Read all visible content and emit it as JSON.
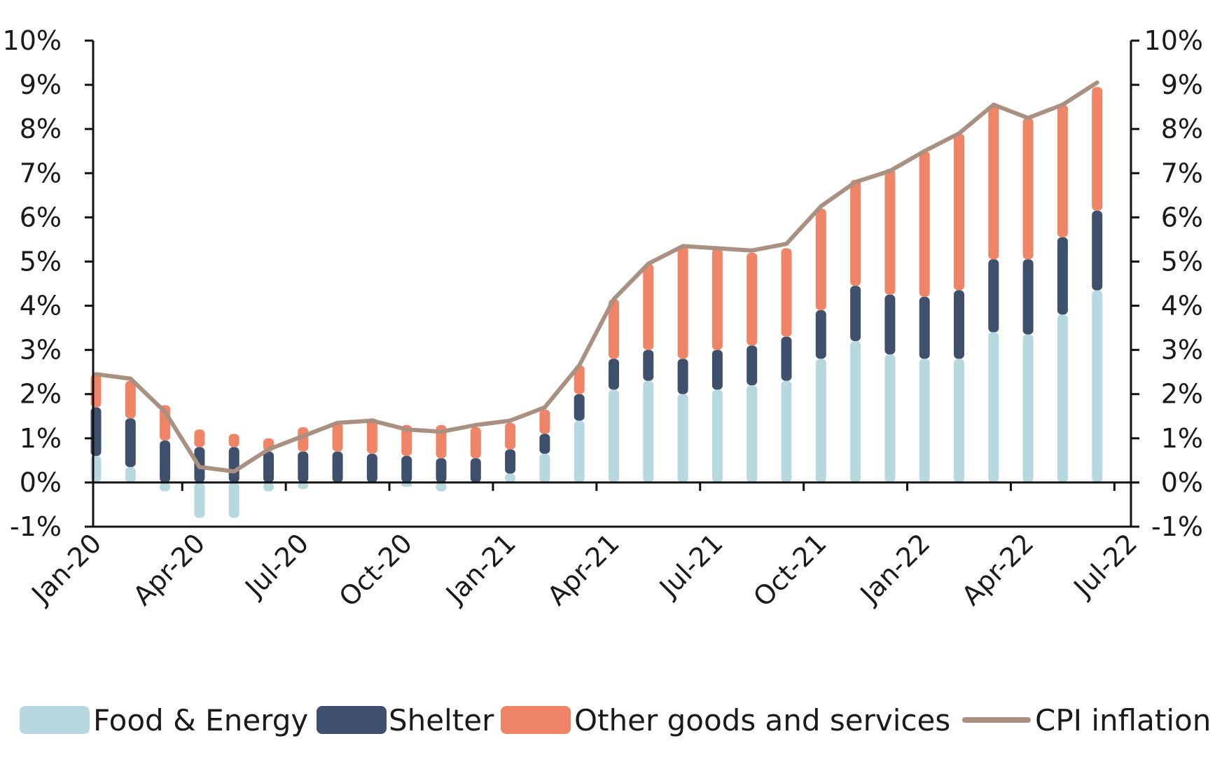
{
  "chart_data": {
    "type": "bar",
    "stacked": true,
    "categories": [
      "Jan-20",
      "Feb-20",
      "Mar-20",
      "Apr-20",
      "May-20",
      "Jun-20",
      "Jul-20",
      "Aug-20",
      "Sep-20",
      "Oct-20",
      "Nov-20",
      "Dec-20",
      "Jan-21",
      "Feb-21",
      "Mar-21",
      "Apr-21",
      "May-21",
      "Jun-21",
      "Jul-21",
      "Aug-21",
      "Sep-21",
      "Oct-21",
      "Nov-21",
      "Dec-21",
      "Jan-22",
      "Feb-22",
      "Mar-22",
      "Apr-22",
      "May-22",
      "Jun-22"
    ],
    "x_tick_labels": [
      "Jan-20",
      "Apr-20",
      "Jul-20",
      "Oct-20",
      "Jan-21",
      "Apr-21",
      "Jul-21",
      "Oct-21",
      "Jan-22",
      "Apr-22",
      "Jul-22"
    ],
    "y_tick_labels": [
      "-1%",
      "0%",
      "1%",
      "2%",
      "3%",
      "4%",
      "5%",
      "6%",
      "7%",
      "8%",
      "9%",
      "10%"
    ],
    "ylim": [
      -1,
      10
    ],
    "series": [
      {
        "name": "Food & Energy",
        "kind": "bar",
        "color": "#b8d8e0",
        "values": [
          0.6,
          0.35,
          -0.2,
          -0.8,
          -0.8,
          -0.2,
          -0.15,
          0.0,
          0.0,
          -0.1,
          -0.2,
          0.0,
          0.2,
          0.65,
          1.4,
          2.1,
          2.3,
          2.0,
          2.1,
          2.2,
          2.3,
          2.8,
          3.2,
          2.9,
          2.8,
          2.8,
          3.4,
          3.35,
          3.8,
          4.35
        ]
      },
      {
        "name": "Shelter",
        "kind": "bar",
        "color": "#3f506c",
        "values": [
          1.1,
          1.1,
          0.95,
          0.8,
          0.8,
          0.7,
          0.7,
          0.7,
          0.65,
          0.6,
          0.55,
          0.55,
          0.55,
          0.45,
          0.6,
          0.7,
          0.7,
          0.8,
          0.9,
          0.9,
          1.0,
          1.1,
          1.25,
          1.35,
          1.4,
          1.55,
          1.65,
          1.7,
          1.75,
          1.8
        ]
      },
      {
        "name": "Other goods and services",
        "kind": "bar",
        "color": "#f08466",
        "values": [
          0.75,
          0.85,
          0.8,
          0.4,
          0.3,
          0.3,
          0.55,
          0.65,
          0.8,
          0.7,
          0.75,
          0.7,
          0.6,
          0.55,
          0.65,
          1.35,
          1.95,
          2.55,
          2.3,
          2.1,
          2.0,
          2.3,
          2.4,
          2.85,
          3.3,
          3.55,
          3.5,
          3.2,
          3.0,
          2.8
        ]
      },
      {
        "name": "CPI inflation",
        "kind": "line",
        "color": "#a99080",
        "values": [
          2.45,
          2.35,
          1.6,
          0.35,
          0.25,
          0.75,
          1.05,
          1.35,
          1.4,
          1.2,
          1.15,
          1.3,
          1.4,
          1.7,
          2.65,
          4.15,
          4.95,
          5.35,
          5.3,
          5.25,
          5.4,
          6.25,
          6.8,
          7.05,
          7.5,
          7.9,
          8.55,
          8.25,
          8.55,
          9.05
        ]
      }
    ],
    "grid": false,
    "legend_position": "bottom"
  },
  "legend": [
    {
      "label": "Food & Energy",
      "color": "#b8d8e0",
      "kind": "bar"
    },
    {
      "label": "Shelter",
      "color": "#3f506c",
      "kind": "bar"
    },
    {
      "label": "Other goods and services",
      "color": "#f08466",
      "kind": "bar"
    },
    {
      "label": "CPI inflation",
      "color": "#a99080",
      "kind": "line"
    }
  ]
}
